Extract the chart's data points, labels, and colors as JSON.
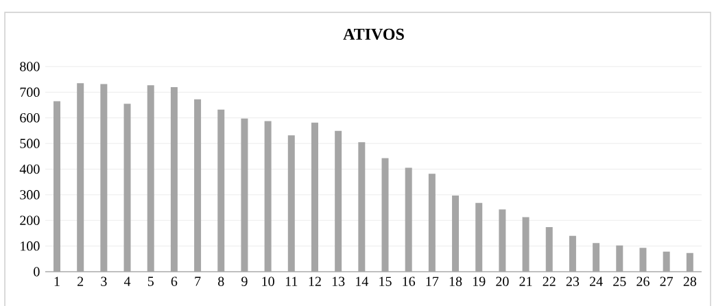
{
  "chart_data": {
    "type": "bar",
    "title": "ATIVOS",
    "categories": [
      "1",
      "2",
      "3",
      "4",
      "5",
      "6",
      "7",
      "8",
      "9",
      "10",
      "11",
      "12",
      "13",
      "14",
      "15",
      "16",
      "17",
      "18",
      "19",
      "20",
      "21",
      "22",
      "23",
      "24",
      "25",
      "26",
      "27",
      "28"
    ],
    "values": [
      665,
      735,
      732,
      655,
      727,
      720,
      672,
      632,
      597,
      587,
      532,
      581,
      549,
      505,
      443,
      405,
      382,
      297,
      268,
      243,
      213,
      174,
      140,
      112,
      102,
      93,
      78,
      73
    ],
    "color": "#a5a5a5",
    "ylim": [
      0,
      800
    ],
    "yticks": [
      0,
      100,
      200,
      300,
      400,
      500,
      600,
      700,
      800
    ],
    "grid": "y"
  }
}
